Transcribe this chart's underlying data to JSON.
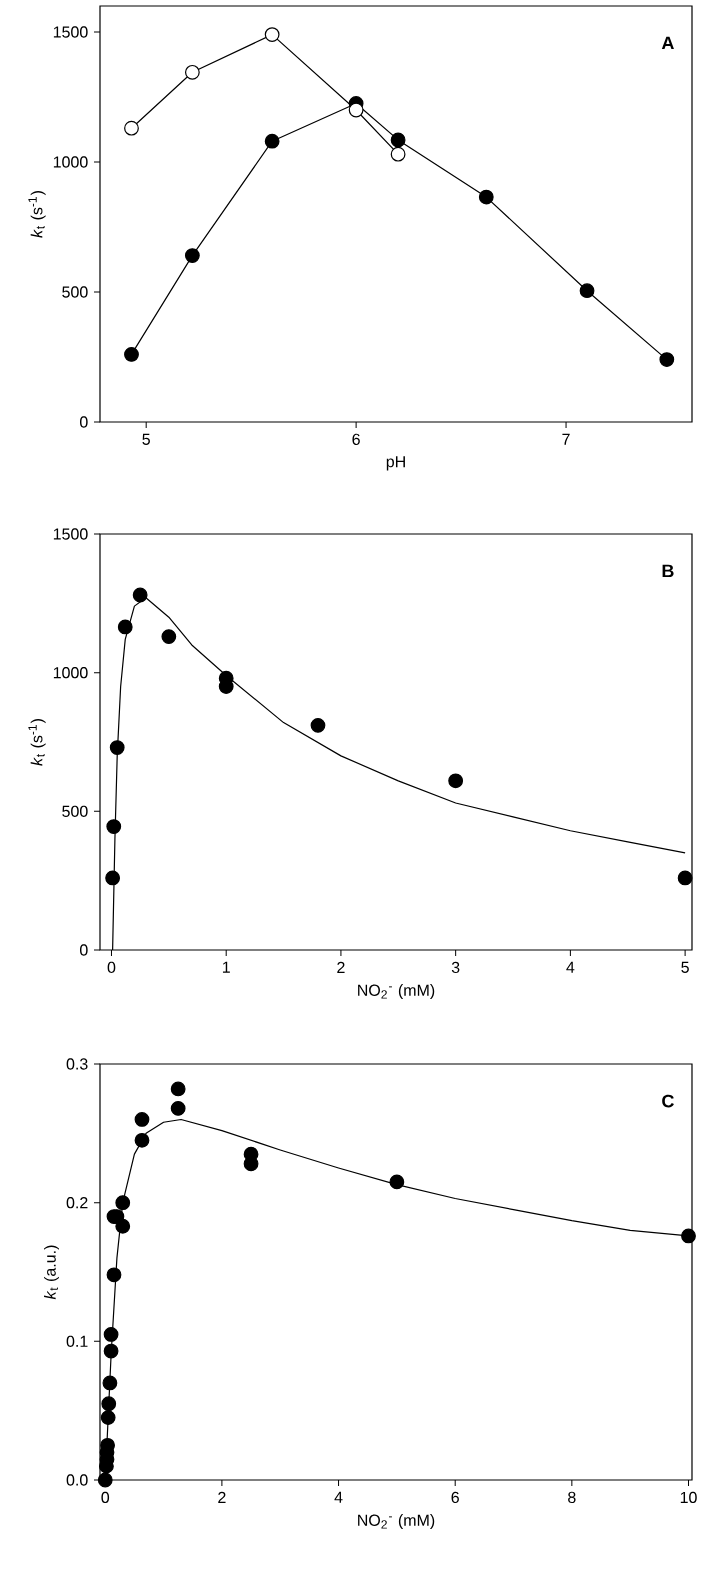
{
  "chart_data": [
    {
      "type": "line",
      "xlabel": "pH",
      "ylabel": "*k*$_{t}$ (s$^{-1}$)",
      "annotations": [
        "A"
      ],
      "xlim": [
        4.78,
        7.6
      ],
      "ylim": [
        0,
        1600
      ],
      "xticks": [
        5,
        6,
        7
      ],
      "yticks": [
        0,
        500,
        1000,
        1500
      ],
      "series": [
        {
          "marker": "circle",
          "color": "#000000",
          "x": [
            4.93,
            5.22,
            5.6,
            6.0,
            6.2,
            6.62,
            7.1,
            7.48
          ],
          "values": [
            260,
            640,
            1080,
            1225,
            1085,
            865,
            505,
            240
          ]
        },
        {
          "marker": "circle",
          "color": "#ffffff",
          "x": [
            4.93,
            5.22,
            5.6,
            6.0,
            6.2
          ],
          "values": [
            1130,
            1345,
            1490,
            1200,
            1030
          ]
        }
      ]
    },
    {
      "type": "scatter",
      "xlabel": "NO$_{2}$$^{-}$ (mM)",
      "ylabel": "*k*$_{t}$ (s$^{-1}$)",
      "annotations": [
        "B"
      ],
      "xlim": [
        -0.1,
        5.06
      ],
      "ylim": [
        0,
        1500
      ],
      "xticks": [
        0,
        1,
        2,
        3,
        4,
        5
      ],
      "yticks": [
        0,
        500,
        1000,
        1500
      ],
      "series": [
        {
          "marker": "circle",
          "color": "#000000",
          "x": [
            0.01,
            0.02,
            0.05,
            0.12,
            0.25,
            0.5,
            1.0,
            1.0,
            1.8,
            3.0,
            5.0
          ],
          "values": [
            260,
            445,
            730,
            1165,
            1280,
            1130,
            980,
            950,
            810,
            610,
            260
          ]
        },
        {
          "type": "line",
          "marker": "none",
          "color": "#000000",
          "x": [
            0.01,
            0.03,
            0.05,
            0.08,
            0.12,
            0.2,
            0.3,
            0.5,
            0.7,
            1.0,
            1.5,
            2.0,
            2.5,
            3.0,
            3.5,
            4.0,
            4.5,
            5.0
          ],
          "values": [
            0,
            400,
            700,
            950,
            1120,
            1240,
            1270,
            1200,
            1100,
            990,
            820,
            700,
            610,
            530,
            480,
            430,
            390,
            350
          ]
        }
      ]
    },
    {
      "type": "scatter",
      "xlabel": "NO$_{2}$$^{-}$ (mM)",
      "ylabel": "*k*$_{t}$ (a.u.)",
      "annotations": [
        "C"
      ],
      "xlim": [
        -0.09,
        10.06
      ],
      "ylim": [
        0,
        0.3
      ],
      "xticks": [
        0,
        2,
        4,
        6,
        8,
        10
      ],
      "yticks": [
        {
          "value": 0,
          "label": "0.0"
        },
        0.1,
        0.2,
        0.3
      ],
      "series": [
        {
          "marker": "circle",
          "color": "#000000",
          "x": [
            0.0,
            0.02,
            0.03,
            0.03,
            0.04,
            0.05,
            0.06,
            0.08,
            0.1,
            0.1,
            0.15,
            0.15,
            0.2,
            0.3,
            0.3,
            0.63,
            0.63,
            1.25,
            1.25,
            2.5,
            2.5,
            5.0,
            10.0
          ],
          "values": [
            0,
            0.01,
            0.015,
            0.02,
            0.025,
            0.045,
            0.055,
            0.07,
            0.093,
            0.105,
            0.148,
            0.19,
            0.19,
            0.2,
            0.183,
            0.26,
            0.245,
            0.282,
            0.268,
            0.235,
            0.228,
            0.215,
            0.176
          ]
        },
        {
          "type": "line",
          "marker": "none",
          "color": "#000000",
          "x": [
            0.0,
            0.1,
            0.2,
            0.3,
            0.5,
            0.7,
            1.0,
            1.3,
            2.0,
            3.0,
            4.0,
            5.0,
            6.0,
            7.0,
            8.0,
            9.0,
            10.0
          ],
          "values": [
            0,
            0.09,
            0.16,
            0.2,
            0.235,
            0.25,
            0.258,
            0.26,
            0.252,
            0.238,
            0.225,
            0.213,
            0.203,
            0.195,
            0.187,
            0.18,
            0.176
          ]
        }
      ]
    }
  ]
}
